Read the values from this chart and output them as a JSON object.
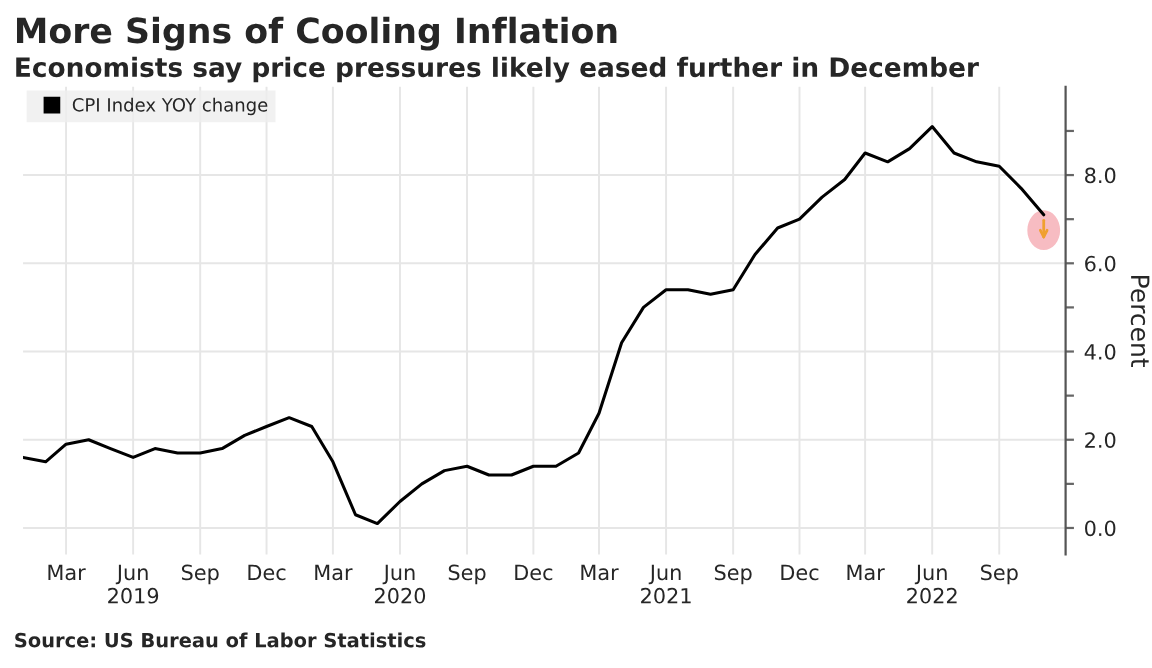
{
  "chart_data": {
    "type": "line",
    "title": "More Signs of Cooling Inflation",
    "subtitle": "Economists say price pressures likely eased further in December",
    "ylabel": "Percent",
    "annotations": [
      "Source: US Bureau of Labor Statistics"
    ],
    "x": [
      "2019-01",
      "2019-02",
      "2019-03",
      "2019-04",
      "2019-05",
      "2019-06",
      "2019-07",
      "2019-08",
      "2019-09",
      "2019-10",
      "2019-11",
      "2019-12",
      "2020-01",
      "2020-02",
      "2020-03",
      "2020-04",
      "2020-05",
      "2020-06",
      "2020-07",
      "2020-08",
      "2020-09",
      "2020-10",
      "2020-11",
      "2020-12",
      "2021-01",
      "2021-02",
      "2021-03",
      "2021-04",
      "2021-05",
      "2021-06",
      "2021-07",
      "2021-08",
      "2021-09",
      "2021-10",
      "2021-11",
      "2021-12",
      "2022-01",
      "2022-02",
      "2022-03",
      "2022-04",
      "2022-05",
      "2022-06",
      "2022-07",
      "2022-08",
      "2022-09",
      "2022-10",
      "2022-11"
    ],
    "series": [
      {
        "name": "CPI Index YOY change",
        "color": "#000000",
        "values": [
          1.6,
          1.5,
          1.9,
          2.0,
          1.8,
          1.6,
          1.8,
          1.7,
          1.7,
          1.8,
          2.1,
          2.3,
          2.5,
          2.3,
          1.5,
          0.3,
          0.1,
          0.6,
          1.0,
          1.3,
          1.4,
          1.2,
          1.2,
          1.4,
          1.4,
          1.7,
          2.6,
          4.2,
          5.0,
          5.4,
          5.4,
          5.3,
          5.4,
          6.2,
          6.8,
          7.0,
          7.5,
          7.9,
          8.5,
          8.3,
          8.6,
          9.1,
          8.5,
          8.3,
          8.2,
          7.7,
          7.1
        ]
      }
    ],
    "xlim": [
      "2019-01",
      "2022-12"
    ],
    "xticks": [
      {
        "value": "2019-03",
        "label": "Mar"
      },
      {
        "value": "2019-06",
        "label": "Jun\n2019"
      },
      {
        "value": "2019-09",
        "label": "Sep"
      },
      {
        "value": "2019-12",
        "label": "Dec"
      },
      {
        "value": "2020-03",
        "label": "Mar"
      },
      {
        "value": "2020-06",
        "label": "Jun\n2020"
      },
      {
        "value": "2020-09",
        "label": "Sep"
      },
      {
        "value": "2020-12",
        "label": "Dec"
      },
      {
        "value": "2021-03",
        "label": "Mar"
      },
      {
        "value": "2021-06",
        "label": "Jun\n2021"
      },
      {
        "value": "2021-09",
        "label": "Sep"
      },
      {
        "value": "2021-12",
        "label": "Dec"
      },
      {
        "value": "2022-03",
        "label": "Mar"
      },
      {
        "value": "2022-06",
        "label": "Jun\n2022"
      },
      {
        "value": "2022-09",
        "label": "Sep"
      }
    ],
    "ylim": [
      -0.6,
      10
    ],
    "yticks": [
      {
        "value": 0,
        "label": "0.0"
      },
      {
        "value": 1,
        "label": null
      },
      {
        "value": 2,
        "label": "2.0"
      },
      {
        "value": 3,
        "label": null
      },
      {
        "value": 4,
        "label": "4.0"
      },
      {
        "value": 5,
        "label": null
      },
      {
        "value": 6,
        "label": "6.0"
      },
      {
        "value": 7,
        "label": null
      },
      {
        "value": 8,
        "label": "8.0"
      },
      {
        "value": 9,
        "label": null
      }
    ],
    "grid": true,
    "legend": "top left",
    "marker": "none",
    "line_style": "solid"
  }
}
